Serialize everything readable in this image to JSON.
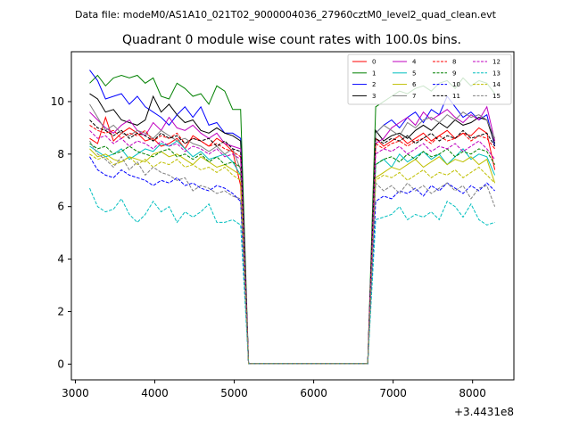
{
  "figure": {
    "suptitle": "Data file: modeM0/AS1A10_021T02_9000004036_27960cztM0_level2_quad_clean.evt"
  },
  "chart_data": {
    "type": "line",
    "title": "Quadrant 0 module wise count rates with 100.0s bins.",
    "xlabel": "",
    "ylabel": "",
    "x_offset_label": "+3.4431e8",
    "xlim": [
      2950,
      8520
    ],
    "ylim": [
      -0.6,
      11.9
    ],
    "x_ticks": [
      3000,
      4000,
      5000,
      6000,
      7000,
      8000
    ],
    "y_ticks": [
      0,
      2,
      4,
      6,
      8,
      10
    ],
    "legend_position": "upper-right",
    "legend_columns": 4,
    "x": [
      3180,
      3280,
      3380,
      3480,
      3580,
      3680,
      3780,
      3880,
      3980,
      4080,
      4180,
      4280,
      4380,
      4480,
      4580,
      4680,
      4780,
      4880,
      4980,
      5080,
      5180,
      5280,
      5380,
      5480,
      5580,
      5680,
      5780,
      5880,
      5980,
      6080,
      6180,
      6280,
      6380,
      6480,
      6580,
      6680,
      6780,
      6880,
      6980,
      7080,
      7180,
      7280,
      7380,
      7480,
      7580,
      7680,
      7780,
      7880,
      7980,
      8080,
      8180,
      8280
    ],
    "series": [
      {
        "name": "0",
        "color": "#ff0000",
        "dash": "solid",
        "values": [
          8.6,
          8.4,
          9.4,
          8.5,
          8.8,
          9.0,
          8.8,
          8.5,
          8.6,
          8.3,
          8.4,
          8.6,
          8.2,
          8.7,
          8.5,
          8.3,
          8.6,
          8.4,
          8.1,
          6.8,
          0.02,
          0.02,
          0.02,
          0.02,
          0.02,
          0.02,
          0.02,
          0.02,
          0.02,
          0.02,
          0.02,
          0.02,
          0.02,
          0.02,
          0.02,
          0.02,
          8.6,
          8.3,
          8.5,
          8.7,
          8.4,
          8.6,
          8.8,
          8.5,
          8.7,
          8.9,
          8.6,
          8.8,
          8.7,
          9.0,
          8.8,
          7.4
        ]
      },
      {
        "name": "1",
        "color": "#008000",
        "dash": "solid",
        "values": [
          10.7,
          11.0,
          10.6,
          10.9,
          11.0,
          10.9,
          11.0,
          10.7,
          10.9,
          10.2,
          10.1,
          10.7,
          10.5,
          10.2,
          10.3,
          9.9,
          10.6,
          10.4,
          9.7,
          9.7,
          0.02,
          0.02,
          0.02,
          0.02,
          0.02,
          0.02,
          0.02,
          0.02,
          0.02,
          0.02,
          0.02,
          0.02,
          0.02,
          0.02,
          0.02,
          0.02,
          9.8,
          10.0,
          10.2,
          10.4,
          10.3,
          10.5,
          10.6,
          10.4,
          10.7,
          10.8,
          10.5,
          10.9,
          10.6,
          10.8,
          10.7,
          10.3
        ]
      },
      {
        "name": "2",
        "color": "#0000ff",
        "dash": "solid",
        "values": [
          11.2,
          10.8,
          10.1,
          10.2,
          10.3,
          9.9,
          10.2,
          9.8,
          9.6,
          9.4,
          9.1,
          9.5,
          9.8,
          9.4,
          9.8,
          9.1,
          9.2,
          8.8,
          8.8,
          8.6,
          0.02,
          0.02,
          0.02,
          0.02,
          0.02,
          0.02,
          0.02,
          0.02,
          0.02,
          0.02,
          0.02,
          0.02,
          0.02,
          0.02,
          0.02,
          0.02,
          8.8,
          9.1,
          9.3,
          9.0,
          9.4,
          9.6,
          9.2,
          9.7,
          9.5,
          10.2,
          9.8,
          9.4,
          9.6,
          9.3,
          9.5,
          8.3
        ]
      },
      {
        "name": "3",
        "color": "#000000",
        "dash": "solid",
        "values": [
          10.3,
          10.1,
          9.6,
          9.7,
          9.3,
          9.2,
          9.1,
          9.3,
          10.2,
          9.6,
          9.9,
          9.5,
          9.2,
          9.3,
          8.9,
          8.8,
          9.0,
          8.8,
          8.7,
          8.5,
          0.02,
          0.02,
          0.02,
          0.02,
          0.02,
          0.02,
          0.02,
          0.02,
          0.02,
          0.02,
          0.02,
          0.02,
          0.02,
          0.02,
          0.02,
          0.02,
          8.9,
          8.5,
          8.7,
          8.8,
          8.6,
          8.9,
          9.1,
          8.9,
          9.2,
          9.0,
          9.3,
          9.1,
          9.2,
          9.4,
          9.3,
          8.4
        ]
      },
      {
        "name": "4",
        "color": "#bf00bf",
        "dash": "solid",
        "values": [
          9.6,
          9.3,
          9.0,
          8.8,
          9.1,
          9.3,
          8.9,
          8.7,
          9.2,
          8.9,
          9.4,
          9.0,
          8.9,
          9.1,
          8.8,
          8.6,
          8.8,
          8.4,
          8.3,
          8.2,
          0.02,
          0.02,
          0.02,
          0.02,
          0.02,
          0.02,
          0.02,
          0.02,
          0.02,
          0.02,
          0.02,
          0.02,
          0.02,
          0.02,
          0.02,
          0.02,
          8.4,
          8.6,
          9.0,
          9.2,
          9.4,
          9.1,
          9.6,
          9.3,
          9.5,
          9.7,
          9.4,
          9.2,
          9.5,
          9.3,
          9.8,
          8.5
        ]
      },
      {
        "name": "5",
        "color": "#00bfbf",
        "dash": "solid",
        "values": [
          8.3,
          8.1,
          7.9,
          8.0,
          8.2,
          7.8,
          8.0,
          8.2,
          8.1,
          8.4,
          8.3,
          8.5,
          8.2,
          7.9,
          8.1,
          7.8,
          7.9,
          8.0,
          7.7,
          7.2,
          0.02,
          0.02,
          0.02,
          0.02,
          0.02,
          0.02,
          0.02,
          0.02,
          0.02,
          0.02,
          0.02,
          0.02,
          0.02,
          0.02,
          0.02,
          0.02,
          7.6,
          7.8,
          7.5,
          8.0,
          7.7,
          7.9,
          8.1,
          7.8,
          8.0,
          7.6,
          7.9,
          8.2,
          7.8,
          8.0,
          7.9,
          7.2
        ]
      },
      {
        "name": "6",
        "color": "#bfbf00",
        "dash": "solid",
        "values": [
          8.2,
          7.9,
          8.0,
          7.8,
          7.7,
          7.9,
          7.8,
          7.7,
          8.0,
          8.1,
          7.9,
          8.0,
          7.8,
          7.6,
          7.9,
          7.7,
          7.5,
          7.6,
          7.4,
          7.2,
          0.02,
          0.02,
          0.02,
          0.02,
          0.02,
          0.02,
          0.02,
          0.02,
          0.02,
          0.02,
          0.02,
          0.02,
          0.02,
          0.02,
          0.02,
          0.02,
          7.1,
          7.3,
          7.5,
          7.4,
          7.6,
          7.8,
          7.5,
          7.7,
          7.9,
          7.6,
          7.8,
          7.7,
          7.9,
          7.6,
          7.8,
          6.9
        ]
      },
      {
        "name": "7",
        "color": "#808080",
        "dash": "solid",
        "values": [
          9.9,
          9.4,
          8.9,
          9.1,
          8.8,
          8.7,
          8.9,
          8.8,
          8.6,
          8.9,
          8.7,
          8.5,
          8.6,
          8.4,
          8.3,
          8.1,
          8.3,
          8.0,
          8.2,
          7.4,
          0.02,
          0.02,
          0.02,
          0.02,
          0.02,
          0.02,
          0.02,
          0.02,
          0.02,
          0.02,
          0.02,
          0.02,
          0.02,
          0.02,
          0.02,
          0.02,
          8.8,
          9.1,
          8.9,
          8.7,
          9.2,
          9.0,
          9.3,
          9.4,
          9.2,
          9.5,
          9.3,
          9.6,
          9.4,
          9.5,
          9.3,
          8.6
        ]
      },
      {
        "name": "8",
        "color": "#ff0000",
        "dash": "dashed",
        "values": [
          9.1,
          8.9,
          8.8,
          8.9,
          8.6,
          8.8,
          8.7,
          8.9,
          8.5,
          8.7,
          8.6,
          8.8,
          8.4,
          8.6,
          8.5,
          8.3,
          8.4,
          8.2,
          8.1,
          7.9,
          0.02,
          0.02,
          0.02,
          0.02,
          0.02,
          0.02,
          0.02,
          0.02,
          0.02,
          0.02,
          0.02,
          0.02,
          0.02,
          0.02,
          0.02,
          0.02,
          8.4,
          8.2,
          8.4,
          8.5,
          8.3,
          8.5,
          8.6,
          8.4,
          8.7,
          8.5,
          8.6,
          8.8,
          8.5,
          8.7,
          8.6,
          8.2
        ]
      },
      {
        "name": "9",
        "color": "#008000",
        "dash": "dashed",
        "values": [
          8.4,
          8.2,
          8.3,
          8.0,
          8.1,
          8.3,
          8.1,
          8.0,
          7.9,
          8.1,
          8.2,
          7.9,
          8.0,
          7.8,
          8.0,
          7.7,
          7.9,
          7.6,
          7.7,
          7.5,
          0.02,
          0.02,
          0.02,
          0.02,
          0.02,
          0.02,
          0.02,
          0.02,
          0.02,
          0.02,
          0.02,
          0.02,
          0.02,
          0.02,
          0.02,
          0.02,
          7.6,
          7.8,
          7.9,
          7.7,
          8.0,
          7.8,
          8.1,
          7.9,
          8.0,
          8.2,
          7.9,
          8.1,
          8.0,
          8.2,
          8.1,
          7.6
        ]
      },
      {
        "name": "10",
        "color": "#0000ff",
        "dash": "dashed",
        "values": [
          7.9,
          7.4,
          7.2,
          7.1,
          7.4,
          7.2,
          7.1,
          7.0,
          6.8,
          7.0,
          6.9,
          7.1,
          6.8,
          6.9,
          6.7,
          6.6,
          6.8,
          6.7,
          6.5,
          6.2,
          0.02,
          0.02,
          0.02,
          0.02,
          0.02,
          0.02,
          0.02,
          0.02,
          0.02,
          0.02,
          0.02,
          0.02,
          0.02,
          0.02,
          0.02,
          0.02,
          6.2,
          6.4,
          6.3,
          6.6,
          6.5,
          6.7,
          6.4,
          6.8,
          6.6,
          6.9,
          6.7,
          6.5,
          6.8,
          6.6,
          6.9,
          6.6
        ]
      },
      {
        "name": "11",
        "color": "#000000",
        "dash": "dashed",
        "values": [
          9.3,
          9.0,
          8.9,
          8.7,
          8.9,
          8.6,
          8.8,
          8.7,
          8.5,
          8.8,
          8.6,
          8.7,
          8.4,
          8.6,
          8.5,
          8.6,
          8.3,
          8.5,
          8.2,
          8.1,
          0.02,
          0.02,
          0.02,
          0.02,
          0.02,
          0.02,
          0.02,
          0.02,
          0.02,
          0.02,
          0.02,
          0.02,
          0.02,
          0.02,
          0.02,
          0.02,
          8.6,
          8.4,
          8.6,
          8.5,
          8.7,
          8.4,
          8.6,
          8.8,
          8.5,
          8.7,
          8.6,
          8.9,
          8.6,
          8.7,
          8.8,
          8.3
        ]
      },
      {
        "name": "12",
        "color": "#bf00bf",
        "dash": "dashed",
        "values": [
          8.9,
          8.6,
          8.7,
          8.4,
          8.6,
          8.3,
          8.5,
          8.4,
          8.2,
          8.5,
          8.3,
          8.4,
          8.1,
          8.3,
          8.2,
          8.0,
          8.2,
          7.9,
          8.0,
          7.8,
          0.02,
          0.02,
          0.02,
          0.02,
          0.02,
          0.02,
          0.02,
          0.02,
          0.02,
          0.02,
          0.02,
          0.02,
          0.02,
          0.02,
          0.02,
          0.02,
          8.0,
          8.2,
          8.1,
          8.3,
          8.0,
          8.2,
          8.4,
          8.1,
          8.3,
          8.2,
          8.4,
          8.1,
          8.3,
          8.5,
          8.2,
          7.8
        ]
      },
      {
        "name": "13",
        "color": "#00bfbf",
        "dash": "dashed",
        "values": [
          6.7,
          6.0,
          5.8,
          5.9,
          6.3,
          5.7,
          5.4,
          5.7,
          6.2,
          5.8,
          6.0,
          5.4,
          5.8,
          5.6,
          5.8,
          6.1,
          5.4,
          5.4,
          5.5,
          5.3,
          0.02,
          0.02,
          0.02,
          0.02,
          0.02,
          0.02,
          0.02,
          0.02,
          0.02,
          0.02,
          0.02,
          0.02,
          0.02,
          0.02,
          0.02,
          0.02,
          5.5,
          5.6,
          5.7,
          6.0,
          5.5,
          5.7,
          5.6,
          5.8,
          5.5,
          6.2,
          6.0,
          5.6,
          6.1,
          5.5,
          5.3,
          5.4
        ]
      },
      {
        "name": "14",
        "color": "#bfbf00",
        "dash": "dashed",
        "values": [
          8.0,
          7.8,
          7.9,
          7.6,
          7.7,
          7.9,
          7.6,
          7.8,
          7.5,
          7.7,
          7.6,
          7.8,
          7.5,
          7.6,
          7.4,
          7.5,
          7.3,
          7.5,
          7.2,
          7.0,
          0.02,
          0.02,
          0.02,
          0.02,
          0.02,
          0.02,
          0.02,
          0.02,
          0.02,
          0.02,
          0.02,
          0.02,
          0.02,
          0.02,
          0.02,
          0.02,
          7.0,
          7.2,
          7.1,
          7.3,
          7.0,
          7.2,
          7.4,
          7.1,
          7.3,
          7.2,
          7.4,
          7.1,
          7.3,
          7.5,
          7.2,
          6.9
        ]
      },
      {
        "name": "15",
        "color": "#808080",
        "dash": "dashed",
        "values": [
          8.5,
          8.0,
          7.8,
          7.5,
          7.9,
          7.4,
          7.7,
          7.2,
          7.5,
          7.3,
          7.2,
          7.0,
          7.1,
          6.6,
          6.8,
          6.7,
          6.5,
          6.6,
          6.4,
          6.3,
          0.02,
          0.02,
          0.02,
          0.02,
          0.02,
          0.02,
          0.02,
          0.02,
          0.02,
          0.02,
          0.02,
          0.02,
          0.02,
          0.02,
          0.02,
          0.02,
          6.9,
          6.6,
          6.8,
          6.5,
          6.9,
          6.6,
          6.8,
          6.5,
          6.7,
          6.9,
          6.6,
          6.8,
          6.3,
          6.7,
          6.8,
          6.0
        ]
      }
    ]
  }
}
